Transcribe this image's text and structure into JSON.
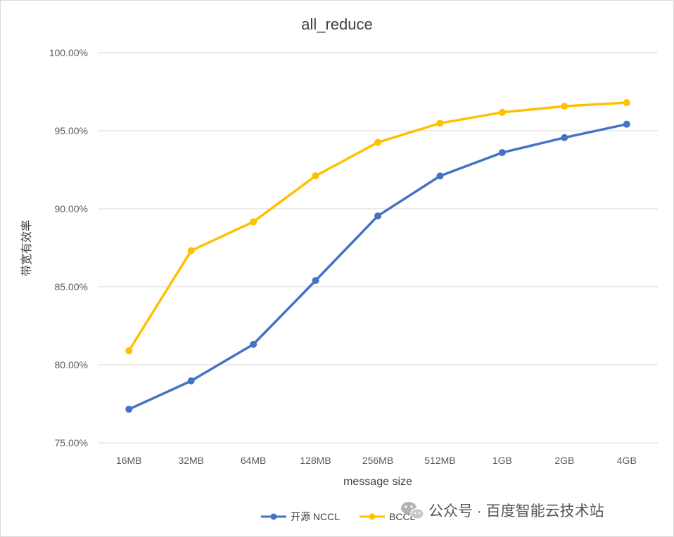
{
  "chart_data": {
    "type": "line",
    "title": "all_reduce",
    "xlabel": "message size",
    "ylabel": "带宽有效率",
    "categories": [
      "16MB",
      "32MB",
      "64MB",
      "128MB",
      "256MB",
      "512MB",
      "1GB",
      "2GB",
      "4GB"
    ],
    "ylim": [
      75,
      100
    ],
    "yticks": [
      75,
      80,
      85,
      90,
      95,
      100
    ],
    "ytick_labels": [
      "75.00%",
      "80.00%",
      "85.00%",
      "90.00%",
      "95.00%",
      "100.00%"
    ],
    "grid": true,
    "legend_position": "bottom-center",
    "series": [
      {
        "name": "开源 NCCL",
        "color": "#4472c4",
        "values": [
          77.15,
          78.97,
          81.31,
          85.4,
          89.54,
          92.1,
          93.6,
          94.56,
          95.42
        ]
      },
      {
        "name": "BCCL",
        "color": "#ffc000",
        "values": [
          80.9,
          87.31,
          89.16,
          92.11,
          94.25,
          95.48,
          96.18,
          96.57,
          96.8
        ]
      }
    ]
  },
  "watermark": {
    "text": "公众号 · 百度智能云技术站",
    "icon": "wechat-icon"
  }
}
